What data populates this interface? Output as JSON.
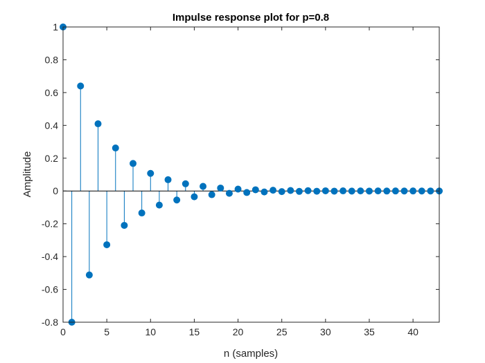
{
  "chart_data": {
    "type": "stem",
    "title": "Impulse response plot for p=0.8",
    "xlabel": "n (samples)",
    "ylabel": "Amplitude",
    "xlim": [
      0,
      43
    ],
    "ylim": [
      -0.8,
      1
    ],
    "xticks": [
      0,
      5,
      10,
      15,
      20,
      25,
      30,
      35,
      40
    ],
    "yticks": [
      -0.8,
      -0.6,
      -0.4,
      -0.2,
      0,
      0.2,
      0.4,
      0.6,
      0.8,
      1
    ],
    "xtick_labels": [
      "0",
      "5",
      "10",
      "15",
      "20",
      "25",
      "30",
      "35",
      "40"
    ],
    "ytick_labels": [
      "-0.8",
      "-0.6",
      "-0.4",
      "-0.2",
      "0",
      "0.2",
      "0.4",
      "0.6",
      "0.8",
      "1"
    ],
    "grid": false,
    "color": "#0072bd",
    "x": [
      0,
      1,
      2,
      3,
      4,
      5,
      6,
      7,
      8,
      9,
      10,
      11,
      12,
      13,
      14,
      15,
      16,
      17,
      18,
      19,
      20,
      21,
      22,
      23,
      24,
      25,
      26,
      27,
      28,
      29,
      30,
      31,
      32,
      33,
      34,
      35,
      36,
      37,
      38,
      39,
      40,
      41,
      42,
      43
    ],
    "y": [
      1,
      -0.8,
      0.64,
      -0.512,
      0.4096,
      -0.3277,
      0.2621,
      -0.2097,
      0.1678,
      -0.1342,
      0.1074,
      -0.0859,
      0.0687,
      -0.055,
      0.044,
      -0.0352,
      0.0281,
      -0.0225,
      0.018,
      -0.0144,
      0.0115,
      -0.0092,
      0.0074,
      -0.0059,
      0.0047,
      -0.0038,
      0.003,
      -0.0024,
      0.0019,
      -0.0015,
      0.0012,
      -0.001,
      0.0008,
      -0.0006,
      0.0005,
      -0.0004,
      0.0003,
      -0.0003,
      0.0002,
      -0.0002,
      0.0002,
      -0.0001,
      0.0001,
      -0.0001
    ]
  }
}
